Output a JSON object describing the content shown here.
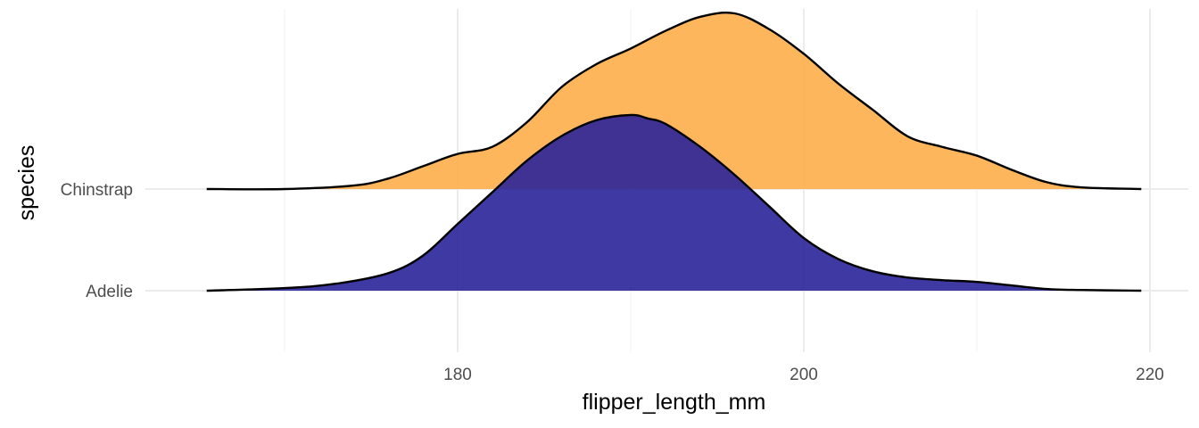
{
  "chart_data": {
    "type": "ridgeline",
    "xlabel": "flipper_length_mm",
    "ylabel": "species",
    "xlim": [
      163,
      221
    ],
    "x_ticks": [
      180,
      200,
      220
    ],
    "categories": [
      "Adelie",
      "Chinstrap"
    ],
    "grid": true,
    "series": [
      {
        "name": "Adelie",
        "color": "#2a2499",
        "x": [
          165.5,
          170,
          173,
          176,
          178,
          180,
          182,
          184,
          186,
          188,
          190,
          191,
          192,
          194,
          196,
          198,
          200,
          202,
          204,
          206,
          208,
          210,
          212,
          214,
          216,
          219.5
        ],
        "density": [
          0.0,
          0.015,
          0.04,
          0.1,
          0.2,
          0.38,
          0.56,
          0.74,
          0.88,
          0.97,
          1.0,
          0.98,
          0.95,
          0.82,
          0.66,
          0.48,
          0.3,
          0.18,
          0.11,
          0.075,
          0.06,
          0.05,
          0.03,
          0.01,
          0.004,
          0.0
        ]
      },
      {
        "name": "Chinstrap",
        "color": "#fdae4a",
        "x": [
          165.5,
          170,
          174,
          176,
          178,
          180,
          182,
          184,
          186,
          188,
          190,
          192,
          194,
          196,
          198,
          200,
          202,
          204,
          206,
          208,
          210,
          212,
          214,
          216,
          219.5
        ],
        "density": [
          0.0,
          0.0,
          0.02,
          0.06,
          0.13,
          0.2,
          0.24,
          0.38,
          0.58,
          0.71,
          0.8,
          0.9,
          0.98,
          1.0,
          0.91,
          0.77,
          0.6,
          0.45,
          0.3,
          0.24,
          0.19,
          0.11,
          0.04,
          0.01,
          0.0
        ]
      }
    ]
  }
}
